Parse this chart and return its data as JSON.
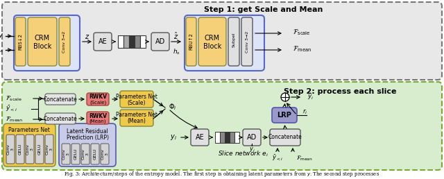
{
  "caption": "Fig. 3: Architecture/steps of the entropy model. The first step is obtaining latent parameters from y. The second step processes",
  "step1_title": "Step 1: get Scale and Mean",
  "step2_title": "Step 2: process each slice",
  "bg_step1": "#e8e8e8",
  "bg_step2": "#d8edce",
  "border_step1": "#888888",
  "border_step2": "#88aa44",
  "color_yellow_box": "#f5d078",
  "color_yellow_outer": "#f0c84a",
  "color_red": "#e87878",
  "color_blue_lrp": "#8888bb",
  "color_lrp_bg": "#b8b8d8",
  "color_gray": "#c8c8c8",
  "color_ltgray": "#e0e0e0",
  "color_white": "#ffffff",
  "quant_colors": [
    "#ffffff",
    "#888888",
    "#333333",
    "#888888",
    "#ffffff"
  ],
  "quant_colors2": [
    "#ffffff",
    "#999999",
    "#555555",
    "#222222",
    "#bbbbbb"
  ]
}
